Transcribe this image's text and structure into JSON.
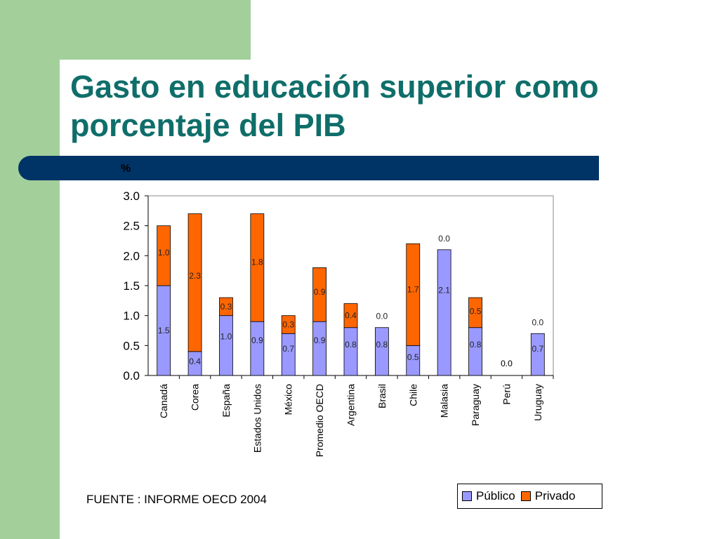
{
  "title": "Gasto en educación superior como porcentaje del PIB",
  "source": "FUENTE : INFORME OECD 2004",
  "colors": {
    "publico": "#9999ff",
    "privado": "#ff6600",
    "title": "#0f6e6a",
    "band": "#003366",
    "sidebar": "#a3cf9b"
  },
  "chart_data": {
    "type": "bar",
    "stacked": true,
    "ylabel": "%",
    "ylim": [
      0,
      3.0
    ],
    "yticks": [
      "0.0",
      "0.5",
      "1.0",
      "1.5",
      "2.0",
      "2.5",
      "3.0"
    ],
    "categories": [
      "Canadá",
      "Corea",
      "España",
      "Estados Unidos",
      "México",
      "Promedio OECD",
      "Argentina",
      "Brasil",
      "Chile",
      "Malasia",
      "Paraguay",
      "Perú",
      "Uruguay"
    ],
    "series": [
      {
        "name": "Público",
        "values": [
          1.5,
          0.4,
          1.0,
          0.9,
          0.7,
          0.9,
          0.8,
          0.8,
          0.5,
          2.1,
          0.8,
          0.0,
          0.7
        ],
        "labels": [
          "1.5",
          "0.4",
          "1.0",
          "0.9",
          "0.7",
          "0.9",
          "0.8",
          "0.8",
          "0.5",
          "2.1",
          "0.8",
          "0.0",
          "0.7"
        ]
      },
      {
        "name": "Privado",
        "values": [
          1.0,
          2.3,
          0.3,
          1.8,
          0.3,
          0.9,
          0.4,
          0.0,
          1.7,
          0.0,
          0.5,
          0.0,
          0.0
        ],
        "labels": [
          "1.0",
          "2.3",
          "0.3",
          "1.8",
          "0.3",
          "0.9",
          "0.4",
          "0.0",
          "1.7",
          "0.0",
          "0.5",
          "0.0",
          "0.0"
        ]
      }
    ],
    "legend": "bottom-right",
    "grid": false
  }
}
